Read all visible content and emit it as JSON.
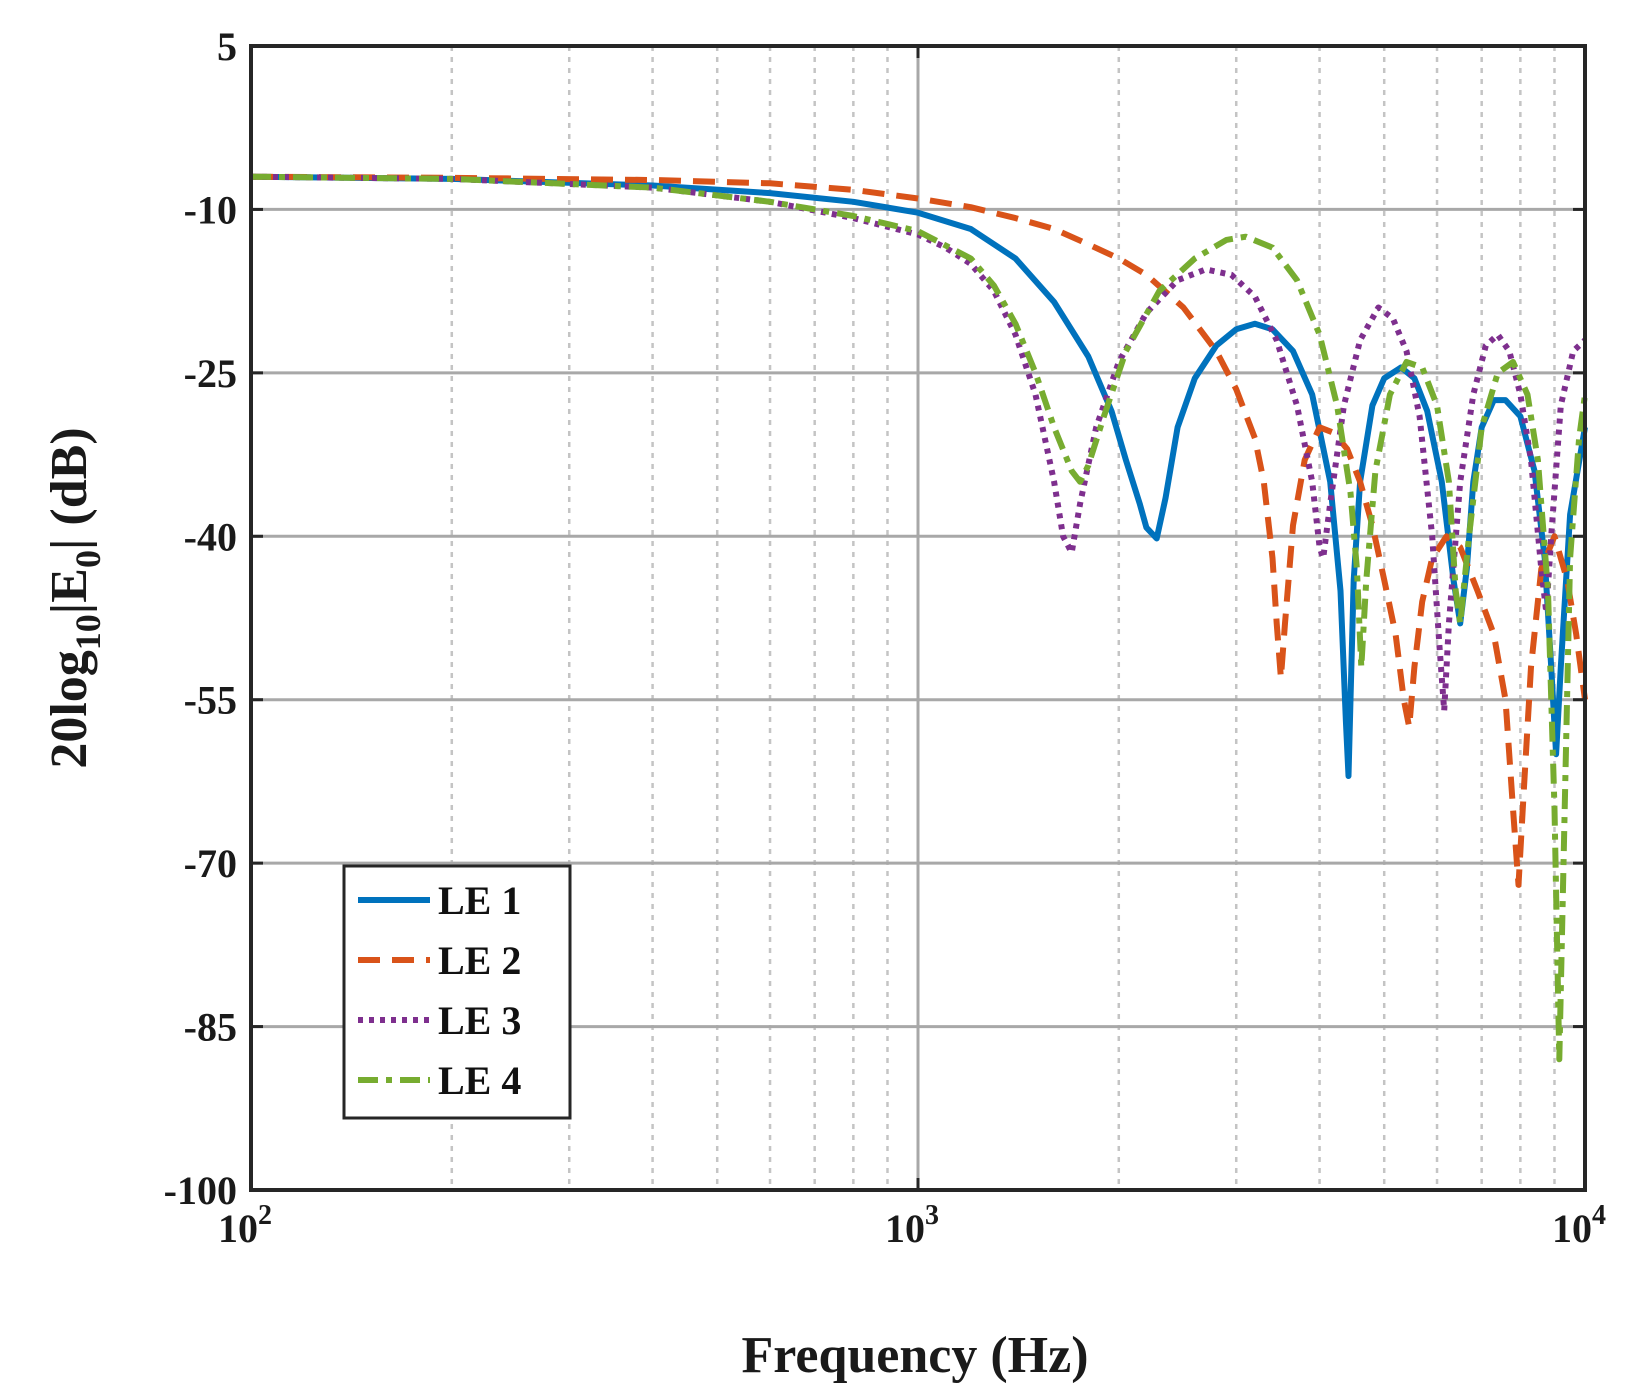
{
  "chart_data": {
    "type": "line",
    "xscale": "log",
    "xlim": [
      100,
      10000
    ],
    "ylim": [
      -100,
      5
    ],
    "xlabel": "Frequency (Hz)",
    "ylabel": {
      "prefix": "20log",
      "sub1": "10",
      "mid": "|E",
      "sub2": "0",
      "suffix": "| (dB)"
    },
    "xticks": [
      {
        "base": "10",
        "exp": "2",
        "value": 100
      },
      {
        "base": "10",
        "exp": "3",
        "value": 1000
      },
      {
        "base": "10",
        "exp": "4",
        "value": 10000
      }
    ],
    "yticks": [
      5,
      -10,
      -25,
      -40,
      -55,
      -70,
      -85,
      -100
    ],
    "grid": true,
    "legend_position": "bottom-left",
    "series": [
      {
        "name": "LE 1",
        "color": "#0072BD",
        "style": "solid",
        "points": [
          [
            100,
            -7
          ],
          [
            200,
            -7.2
          ],
          [
            400,
            -7.8
          ],
          [
            600,
            -8.5
          ],
          [
            800,
            -9.3
          ],
          [
            1000,
            -10.3
          ],
          [
            1200,
            -11.8
          ],
          [
            1400,
            -14.5
          ],
          [
            1600,
            -18.5
          ],
          [
            1800,
            -23.5
          ],
          [
            1950,
            -28.5
          ],
          [
            2050,
            -33
          ],
          [
            2150,
            -37
          ],
          [
            2200,
            -39.2
          ],
          [
            2280,
            -40.2
          ],
          [
            2350,
            -36.5
          ],
          [
            2450,
            -30
          ],
          [
            2600,
            -25.5
          ],
          [
            2800,
            -22.5
          ],
          [
            3000,
            -21
          ],
          [
            3200,
            -20.5
          ],
          [
            3400,
            -21
          ],
          [
            3650,
            -23
          ],
          [
            3900,
            -27
          ],
          [
            4150,
            -35
          ],
          [
            4300,
            -45
          ],
          [
            4380,
            -57
          ],
          [
            4420,
            -62
          ],
          [
            4450,
            -55
          ],
          [
            4500,
            -44
          ],
          [
            4600,
            -35
          ],
          [
            4800,
            -28
          ],
          [
            5000,
            -25.5
          ],
          [
            5300,
            -24.5
          ],
          [
            5550,
            -25.5
          ],
          [
            5800,
            -28.5
          ],
          [
            6100,
            -35
          ],
          [
            6350,
            -44
          ],
          [
            6500,
            -48
          ],
          [
            6650,
            -43
          ],
          [
            6800,
            -35
          ],
          [
            7000,
            -30
          ],
          [
            7300,
            -27.5
          ],
          [
            7600,
            -27.5
          ],
          [
            8000,
            -29
          ],
          [
            8400,
            -34
          ],
          [
            8700,
            -42
          ],
          [
            8900,
            -52
          ],
          [
            9050,
            -60
          ],
          [
            9200,
            -52
          ],
          [
            9500,
            -38
          ],
          [
            10000,
            -30
          ]
        ]
      },
      {
        "name": "LE 2",
        "color": "#D95319",
        "style": "dashed",
        "points": [
          [
            100,
            -7
          ],
          [
            200,
            -7.1
          ],
          [
            400,
            -7.3
          ],
          [
            600,
            -7.6
          ],
          [
            800,
            -8.2
          ],
          [
            1000,
            -9
          ],
          [
            1200,
            -9.8
          ],
          [
            1400,
            -10.8
          ],
          [
            1600,
            -11.8
          ],
          [
            1800,
            -13.2
          ],
          [
            2000,
            -14.5
          ],
          [
            2200,
            -16
          ],
          [
            2500,
            -19
          ],
          [
            2800,
            -23
          ],
          [
            3000,
            -26.5
          ],
          [
            3200,
            -31
          ],
          [
            3300,
            -35
          ],
          [
            3400,
            -42
          ],
          [
            3450,
            -48
          ],
          [
            3500,
            -53
          ],
          [
            3550,
            -48
          ],
          [
            3650,
            -39
          ],
          [
            3800,
            -33
          ],
          [
            4000,
            -30
          ],
          [
            4200,
            -30.5
          ],
          [
            4400,
            -32
          ],
          [
            4600,
            -35
          ],
          [
            4800,
            -39
          ],
          [
            5000,
            -44
          ],
          [
            5200,
            -49
          ],
          [
            5350,
            -55
          ],
          [
            5450,
            -57.5
          ],
          [
            5550,
            -52
          ],
          [
            5700,
            -46
          ],
          [
            5900,
            -42
          ],
          [
            6200,
            -40
          ],
          [
            6500,
            -41
          ],
          [
            6900,
            -45
          ],
          [
            7300,
            -49
          ],
          [
            7600,
            -55
          ],
          [
            7800,
            -65
          ],
          [
            7950,
            -72
          ],
          [
            8100,
            -63
          ],
          [
            8300,
            -52
          ],
          [
            8600,
            -43
          ],
          [
            9000,
            -40
          ],
          [
            9400,
            -44
          ],
          [
            9700,
            -49
          ],
          [
            10000,
            -55
          ]
        ]
      },
      {
        "name": "LE 3",
        "color": "#7E2F8E",
        "style": "dotted",
        "points": [
          [
            100,
            -7
          ],
          [
            200,
            -7.2
          ],
          [
            400,
            -8
          ],
          [
            600,
            -9.3
          ],
          [
            800,
            -10.8
          ],
          [
            1000,
            -12.3
          ],
          [
            1100,
            -13.5
          ],
          [
            1200,
            -15
          ],
          [
            1300,
            -17.5
          ],
          [
            1400,
            -21.5
          ],
          [
            1500,
            -27
          ],
          [
            1600,
            -35
          ],
          [
            1650,
            -40
          ],
          [
            1700,
            -41.5
          ],
          [
            1750,
            -37
          ],
          [
            1850,
            -30
          ],
          [
            2000,
            -24
          ],
          [
            2200,
            -19.5
          ],
          [
            2450,
            -16.5
          ],
          [
            2700,
            -15.5
          ],
          [
            2950,
            -16
          ],
          [
            3200,
            -18
          ],
          [
            3450,
            -22
          ],
          [
            3700,
            -28
          ],
          [
            3900,
            -35
          ],
          [
            4000,
            -41
          ],
          [
            4050,
            -42
          ],
          [
            4150,
            -37
          ],
          [
            4350,
            -28
          ],
          [
            4600,
            -22
          ],
          [
            4900,
            -19
          ],
          [
            5150,
            -20
          ],
          [
            5400,
            -23
          ],
          [
            5650,
            -29
          ],
          [
            5900,
            -40
          ],
          [
            6050,
            -50
          ],
          [
            6150,
            -56
          ],
          [
            6250,
            -48
          ],
          [
            6500,
            -35
          ],
          [
            6800,
            -27
          ],
          [
            7100,
            -22.5
          ],
          [
            7400,
            -21.5
          ],
          [
            7700,
            -23
          ],
          [
            8000,
            -27
          ],
          [
            8300,
            -33
          ],
          [
            8600,
            -43
          ],
          [
            8750,
            -47
          ],
          [
            8900,
            -40
          ],
          [
            9200,
            -28
          ],
          [
            9600,
            -23
          ],
          [
            10000,
            -22
          ]
        ]
      },
      {
        "name": "LE 4",
        "color": "#77AC30",
        "style": "dashdot",
        "points": [
          [
            100,
            -7
          ],
          [
            200,
            -7.2
          ],
          [
            400,
            -8
          ],
          [
            600,
            -9.3
          ],
          [
            800,
            -10.6
          ],
          [
            1000,
            -12
          ],
          [
            1200,
            -14.5
          ],
          [
            1300,
            -17
          ],
          [
            1400,
            -20.5
          ],
          [
            1500,
            -25
          ],
          [
            1600,
            -30
          ],
          [
            1700,
            -34
          ],
          [
            1750,
            -35
          ],
          [
            1800,
            -33.5
          ],
          [
            1900,
            -29
          ],
          [
            2050,
            -23
          ],
          [
            2300,
            -17.5
          ],
          [
            2600,
            -14.5
          ],
          [
            2900,
            -12.8
          ],
          [
            3100,
            -12.5
          ],
          [
            3400,
            -13.5
          ],
          [
            3700,
            -16.5
          ],
          [
            4000,
            -21.5
          ],
          [
            4250,
            -28
          ],
          [
            4450,
            -36
          ],
          [
            4550,
            -43
          ],
          [
            4620,
            -52
          ],
          [
            4700,
            -44
          ],
          [
            4850,
            -34
          ],
          [
            5100,
            -27
          ],
          [
            5400,
            -24
          ],
          [
            5700,
            -24.5
          ],
          [
            6000,
            -28
          ],
          [
            6250,
            -35
          ],
          [
            6400,
            -45
          ],
          [
            6500,
            -48
          ],
          [
            6700,
            -40
          ],
          [
            7000,
            -30
          ],
          [
            7400,
            -25
          ],
          [
            7800,
            -24
          ],
          [
            8200,
            -27
          ],
          [
            8500,
            -33
          ],
          [
            8800,
            -45
          ],
          [
            9000,
            -65
          ],
          [
            9150,
            -88
          ],
          [
            9300,
            -68
          ],
          [
            9500,
            -42
          ],
          [
            9800,
            -31
          ],
          [
            10000,
            -27
          ]
        ]
      }
    ]
  }
}
